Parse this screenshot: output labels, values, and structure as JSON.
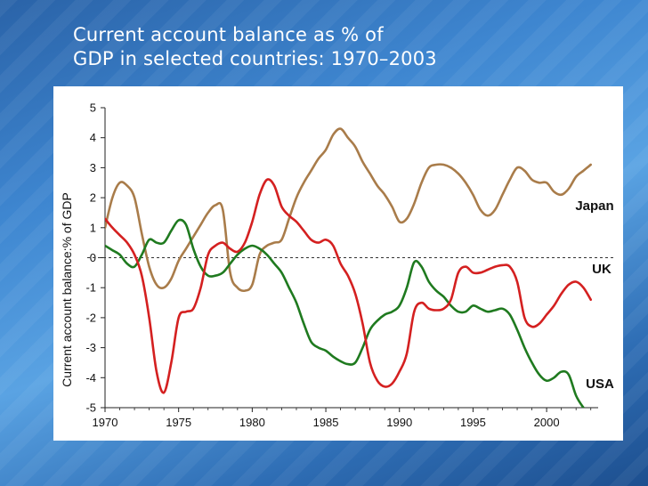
{
  "slide": {
    "title_line1": "Current account balance as % of",
    "title_line2": "GDP in selected countries: 1970–2003"
  },
  "colors": {
    "Japan": "#a97c4a",
    "UK": "#d42020",
    "USA": "#1f7a1f"
  },
  "chart_data": {
    "type": "line",
    "title": "Current account balance as % of GDP in selected countries: 1970–2003",
    "xlabel": "",
    "ylabel": "Current account balance:% of GDP",
    "xlim": [
      1970,
      2003.5
    ],
    "ylim": [
      -5,
      5
    ],
    "xticks": [
      1970,
      1975,
      1980,
      1985,
      1990,
      1995,
      2000
    ],
    "yticks": [
      5,
      4,
      3,
      2,
      1,
      0,
      -1,
      -2,
      -3,
      -4,
      -5
    ],
    "zero_line": "dashed",
    "grid": false,
    "series": [
      {
        "name": "Japan",
        "x": [
          1970,
          1970.5,
          1971,
          1971.5,
          1972,
          1972.5,
          1973,
          1973.5,
          1974,
          1974.5,
          1975,
          1975.5,
          1976,
          1976.5,
          1977,
          1977.5,
          1978,
          1978.5,
          1979,
          1979.5,
          1980,
          1980.5,
          1981,
          1981.5,
          1982,
          1982.5,
          1983,
          1983.5,
          1984,
          1984.5,
          1985,
          1985.5,
          1986,
          1986.5,
          1987,
          1987.5,
          1988,
          1988.5,
          1989,
          1989.5,
          1990,
          1990.5,
          1991,
          1991.5,
          1992,
          1992.5,
          1993,
          1993.5,
          1994,
          1994.5,
          1995,
          1995.5,
          1996,
          1996.5,
          1997,
          1997.5,
          1998,
          1998.5,
          1999,
          1999.5,
          2000,
          2000.5,
          2001,
          2001.5,
          2002,
          2002.5,
          2003
        ],
        "values": [
          1.0,
          2.0,
          2.5,
          2.4,
          2.0,
          0.8,
          -0.3,
          -0.9,
          -1.0,
          -0.7,
          -0.1,
          0.3,
          0.7,
          1.1,
          1.5,
          1.75,
          1.6,
          -0.5,
          -1.0,
          -1.1,
          -0.9,
          0.1,
          0.4,
          0.5,
          0.6,
          1.3,
          2.0,
          2.5,
          2.9,
          3.3,
          3.6,
          4.1,
          4.3,
          4.0,
          3.7,
          3.2,
          2.8,
          2.4,
          2.1,
          1.7,
          1.2,
          1.3,
          1.8,
          2.5,
          3.0,
          3.1,
          3.1,
          3.0,
          2.8,
          2.5,
          2.1,
          1.6,
          1.4,
          1.6,
          2.1,
          2.6,
          3.0,
          2.9,
          2.6,
          2.5,
          2.5,
          2.2,
          2.1,
          2.3,
          2.7,
          2.9,
          3.1
        ]
      },
      {
        "name": "UK",
        "x": [
          1970,
          1970.5,
          1971,
          1971.5,
          1972,
          1972.5,
          1973,
          1973.5,
          1974,
          1974.5,
          1975,
          1975.5,
          1976,
          1976.5,
          1977,
          1977.5,
          1978,
          1978.5,
          1979,
          1979.5,
          1980,
          1980.5,
          1981,
          1981.5,
          1982,
          1982.5,
          1983,
          1983.5,
          1984,
          1984.5,
          1985,
          1985.5,
          1986,
          1986.5,
          1987,
          1987.5,
          1988,
          1988.5,
          1989,
          1989.5,
          1990,
          1990.5,
          1991,
          1991.5,
          1992,
          1992.5,
          1993,
          1993.5,
          1994,
          1994.5,
          1995,
          1995.5,
          1996,
          1996.5,
          1997,
          1997.5,
          1998,
          1998.5,
          1999,
          1999.5,
          2000,
          2000.5,
          2001,
          2001.5,
          2002,
          2002.5,
          2003
        ],
        "values": [
          1.3,
          1.0,
          0.75,
          0.5,
          0.1,
          -0.6,
          -2.0,
          -3.8,
          -4.5,
          -3.5,
          -2.0,
          -1.8,
          -1.7,
          -1.0,
          0.1,
          0.4,
          0.5,
          0.3,
          0.2,
          0.5,
          1.2,
          2.1,
          2.6,
          2.4,
          1.7,
          1.4,
          1.2,
          0.9,
          0.6,
          0.5,
          0.6,
          0.4,
          -0.2,
          -0.6,
          -1.2,
          -2.2,
          -3.5,
          -4.1,
          -4.3,
          -4.2,
          -3.8,
          -3.2,
          -1.8,
          -1.5,
          -1.7,
          -1.75,
          -1.7,
          -1.4,
          -0.5,
          -0.3,
          -0.5,
          -0.5,
          -0.4,
          -0.3,
          -0.25,
          -0.3,
          -0.8,
          -2.0,
          -2.3,
          -2.2,
          -1.9,
          -1.6,
          -1.2,
          -0.9,
          -0.8,
          -1.0,
          -1.4
        ]
      },
      {
        "name": "USA",
        "x": [
          1970,
          1970.5,
          1971,
          1971.5,
          1972,
          1972.5,
          1973,
          1973.5,
          1974,
          1974.5,
          1975,
          1975.5,
          1976,
          1976.5,
          1977,
          1977.5,
          1978,
          1978.5,
          1979,
          1979.5,
          1980,
          1980.5,
          1981,
          1981.5,
          1982,
          1982.5,
          1983,
          1983.5,
          1984,
          1984.5,
          1985,
          1985.5,
          1986,
          1986.5,
          1987,
          1987.5,
          1988,
          1988.5,
          1989,
          1989.5,
          1990,
          1990.5,
          1991,
          1991.5,
          1992,
          1992.5,
          1993,
          1993.5,
          1994,
          1994.5,
          1995,
          1995.5,
          1996,
          1996.5,
          1997,
          1997.5,
          1998,
          1998.5,
          1999,
          1999.5,
          2000,
          2000.5,
          2001,
          2001.5,
          2002,
          2002.5,
          2003
        ],
        "values": [
          0.4,
          0.25,
          0.1,
          -0.2,
          -0.3,
          0.1,
          0.6,
          0.5,
          0.5,
          0.9,
          1.25,
          1.1,
          0.3,
          -0.3,
          -0.6,
          -0.6,
          -0.5,
          -0.2,
          0.1,
          0.3,
          0.4,
          0.3,
          0.1,
          -0.2,
          -0.5,
          -1.0,
          -1.5,
          -2.2,
          -2.8,
          -3.0,
          -3.1,
          -3.3,
          -3.45,
          -3.55,
          -3.5,
          -3.0,
          -2.4,
          -2.1,
          -1.9,
          -1.8,
          -1.6,
          -1.0,
          -0.15,
          -0.3,
          -0.8,
          -1.1,
          -1.3,
          -1.6,
          -1.8,
          -1.8,
          -1.6,
          -1.7,
          -1.8,
          -1.75,
          -1.7,
          -1.9,
          -2.4,
          -3.0,
          -3.5,
          -3.9,
          -4.1,
          -4.0,
          -3.8,
          -3.9,
          -4.6,
          -5.0,
          -5.3
        ]
      }
    ]
  }
}
